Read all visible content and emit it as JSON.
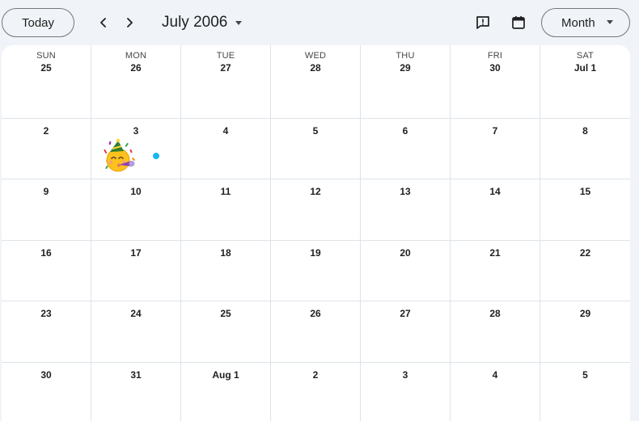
{
  "toolbar": {
    "today_label": "Today",
    "title": "July 2006",
    "view_label": "Month"
  },
  "calendar": {
    "weekdays": [
      "SUN",
      "MON",
      "TUE",
      "WED",
      "THU",
      "FRI",
      "SAT"
    ],
    "weeks": [
      [
        "25",
        "26",
        "27",
        "28",
        "29",
        "30",
        "Jul 1"
      ],
      [
        "2",
        "3",
        "4",
        "5",
        "6",
        "7",
        "8"
      ],
      [
        "9",
        "10",
        "11",
        "12",
        "13",
        "14",
        "15"
      ],
      [
        "16",
        "17",
        "18",
        "19",
        "20",
        "21",
        "22"
      ],
      [
        "23",
        "24",
        "25",
        "26",
        "27",
        "28",
        "29"
      ],
      [
        "30",
        "31",
        "Aug 1",
        "2",
        "3",
        "4",
        "5"
      ]
    ],
    "highlighted_day": "3"
  },
  "colors": {
    "background": "#f0f4f9",
    "grid_line": "#dde3ea",
    "event_dot": "#1bb6f2"
  },
  "icons": {
    "prev": "chevron-left-icon",
    "next": "chevron-right-icon",
    "feedback": "feedback-icon",
    "calendar": "calendar-icon",
    "celebration": "party-face-emoji"
  }
}
